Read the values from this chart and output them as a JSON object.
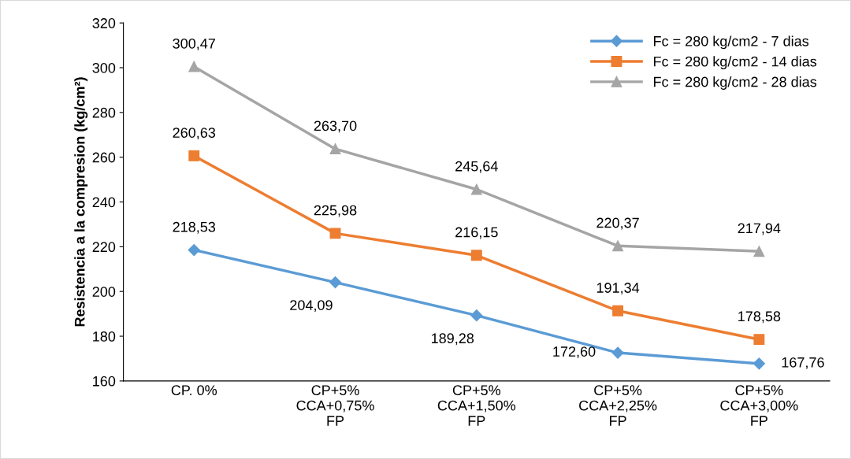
{
  "chart_data": {
    "type": "line",
    "ylabel": "Resistencia a la compresion (kg/cm²)",
    "categories": [
      "CP. 0%",
      "CP+5%\nCCA+0,75%\nFP",
      "CP+5%\nCCA+1,50%\nFP",
      "CP+5%\nCCA+2,25%\nFP",
      "CP+5%\nCCA+3,00%\nFP"
    ],
    "series": [
      {
        "name": "Fc = 280 kg/cm2 - 7 dias",
        "color": "#5b9bd5",
        "marker": "diamond",
        "values": [
          218.53,
          204.09,
          189.28,
          172.6,
          167.76
        ],
        "value_labels": [
          "218,53",
          "204,09",
          "189,28",
          "172,60",
          "167,76"
        ]
      },
      {
        "name": "Fc = 280 kg/cm2 - 14 dias",
        "color": "#ed7d31",
        "marker": "square",
        "values": [
          260.63,
          225.98,
          216.15,
          191.34,
          178.58
        ],
        "value_labels": [
          "260,63",
          "225,98",
          "216,15",
          "191,34",
          "178,58"
        ]
      },
      {
        "name": "Fc = 280 kg/cm2 - 28 dias",
        "color": "#a5a5a5",
        "marker": "triangle",
        "values": [
          300.47,
          263.7,
          245.64,
          220.37,
          217.94
        ],
        "value_labels": [
          "300,47",
          "263,70",
          "245,64",
          "220,37",
          "217,94"
        ]
      }
    ],
    "ylim": [
      160,
      320
    ],
    "yticks": [
      160,
      180,
      200,
      220,
      240,
      260,
      280,
      300,
      320
    ],
    "grid": false,
    "legend": "top right",
    "line_style": "solid"
  }
}
